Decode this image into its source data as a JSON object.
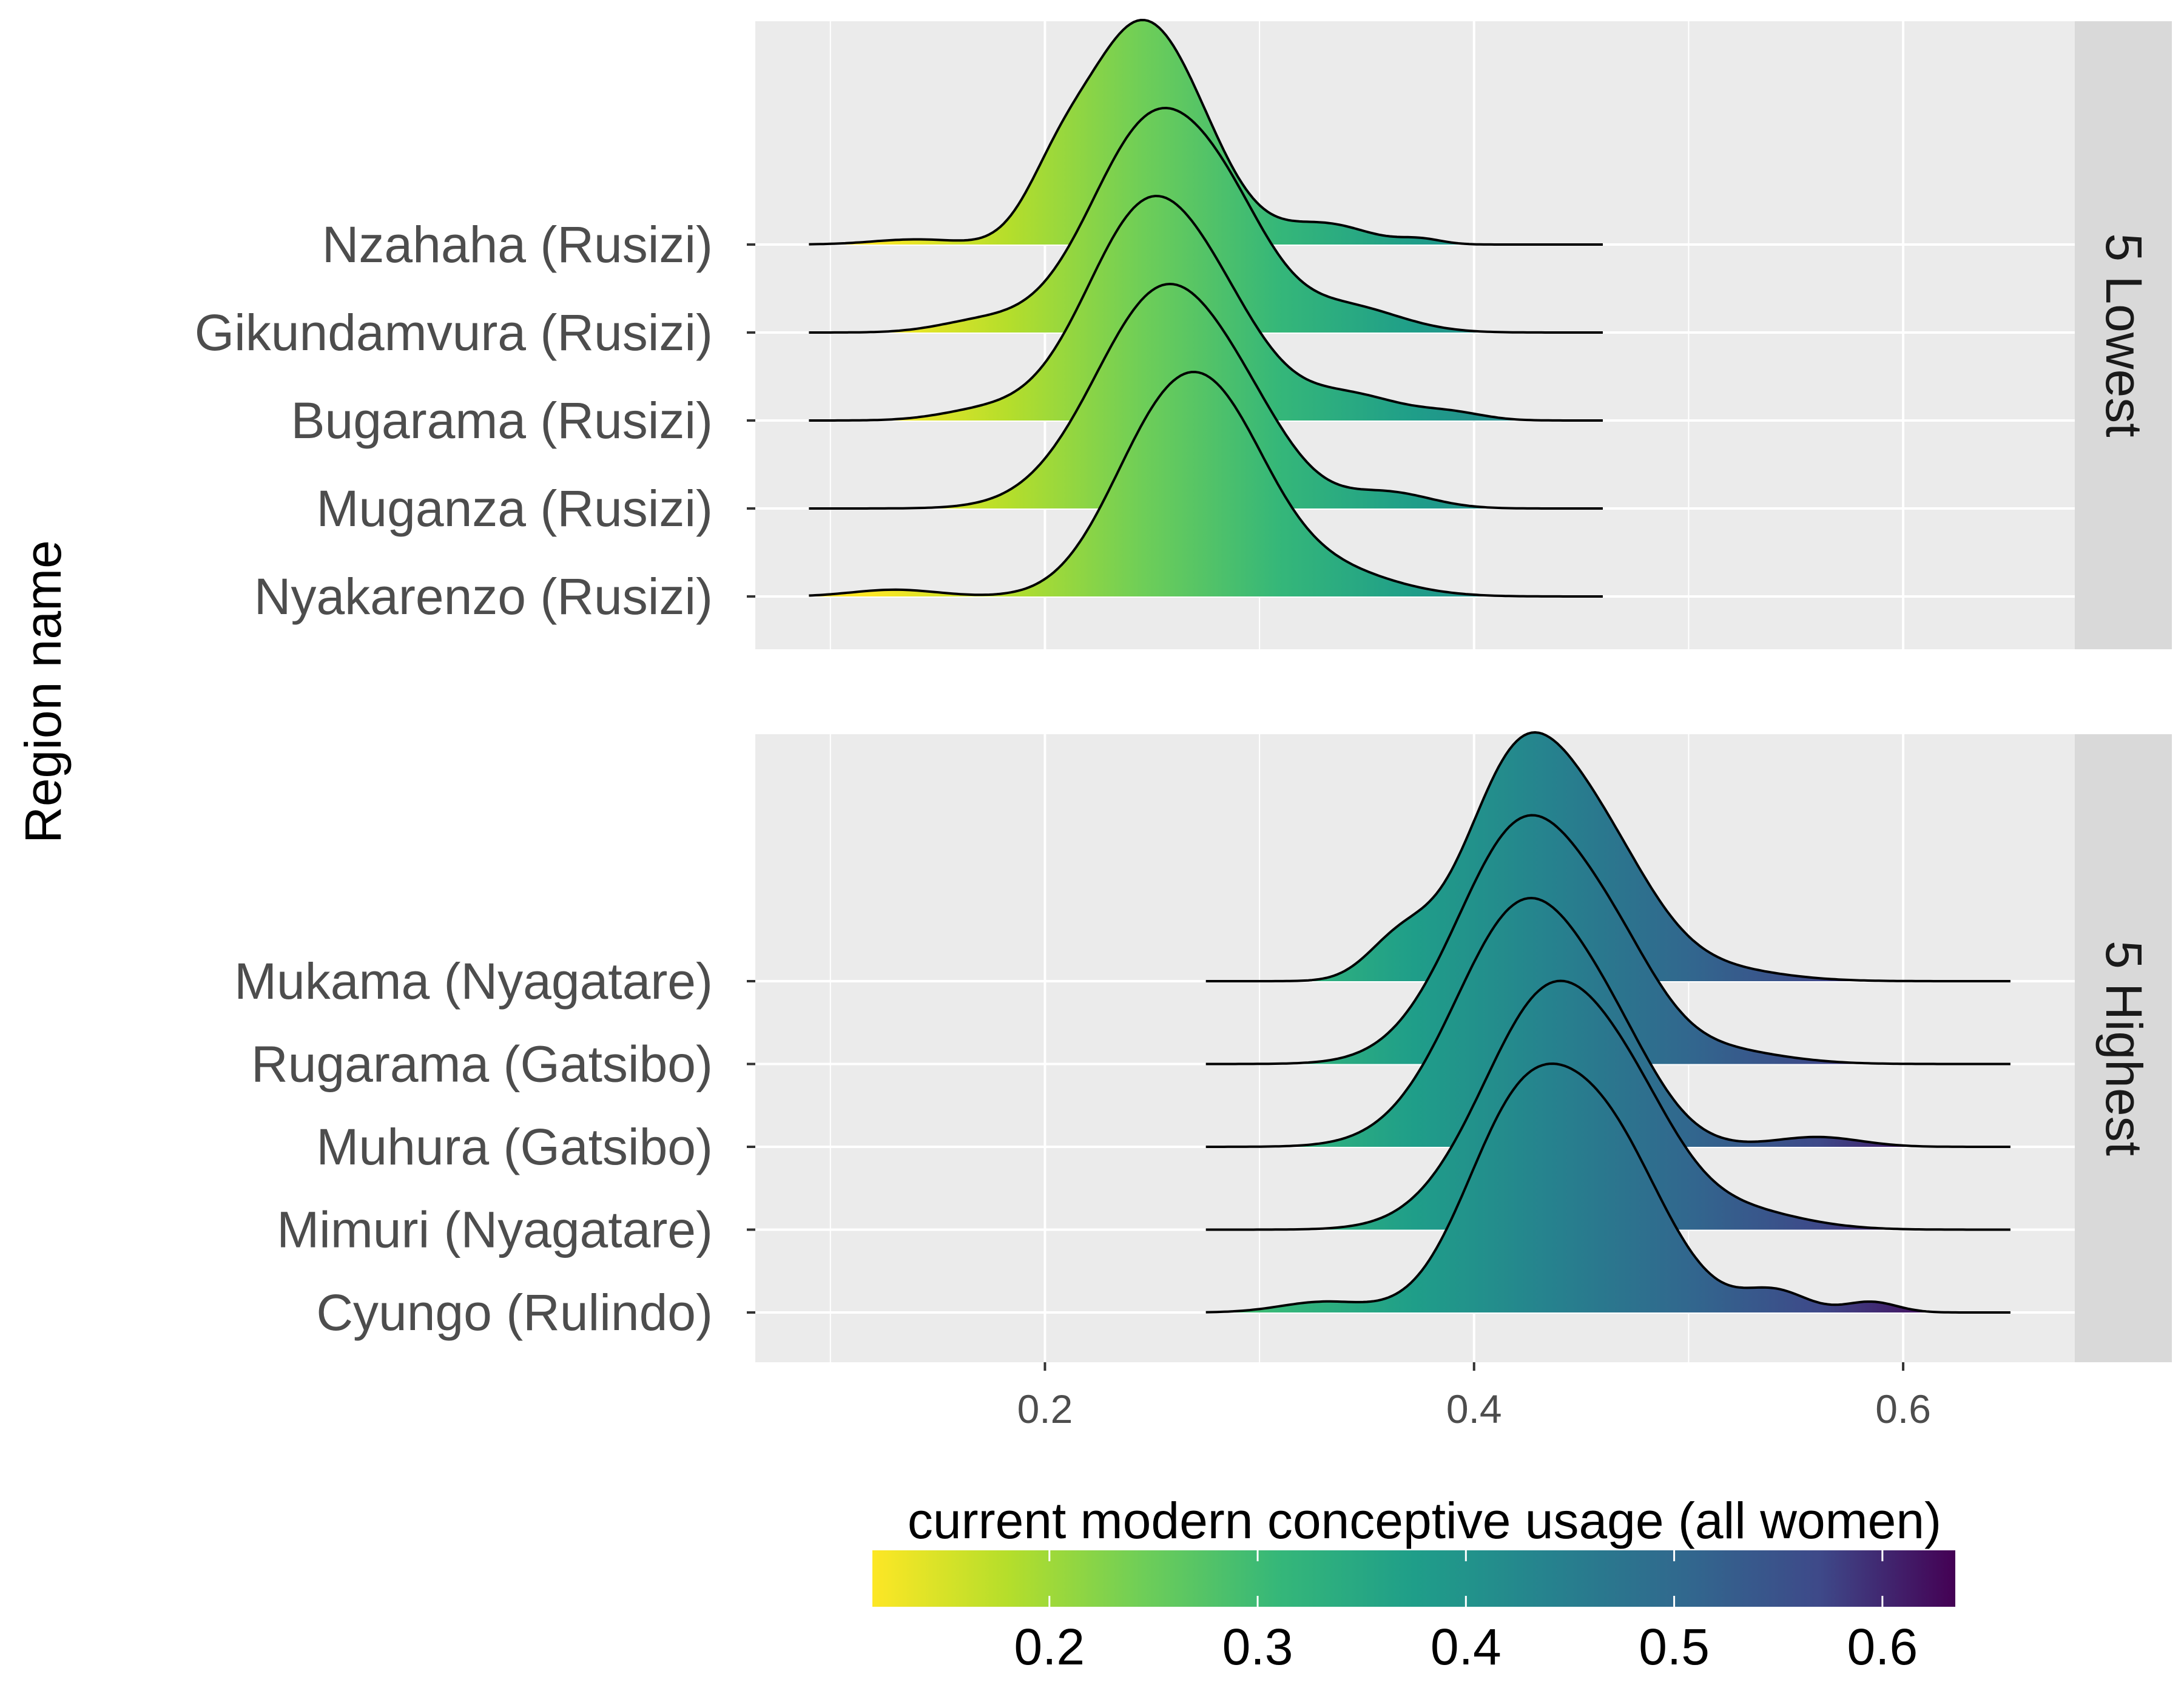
{
  "chart_data": {
    "type": "ridgeline",
    "ylabel": "Region name",
    "xlim": [
      0.065,
      0.68
    ],
    "x_ticks": [
      0.2,
      0.4,
      0.6
    ],
    "x_tick_labels": [
      "0.2",
      "0.4",
      "0.6"
    ],
    "grid": true,
    "legend_placement": "bottom",
    "panels": [
      {
        "strip_label": "5 Lowest",
        "support": [
          0.09,
          0.46
        ],
        "regions": [
          {
            "name": "Nzahaha (Rusizi)",
            "peaks": [
              [
                0.237,
                0.022,
                0.95
              ],
              [
                0.265,
                0.022,
                0.62
              ],
              [
                0.205,
                0.015,
                0.3
              ],
              [
                0.33,
                0.02,
                0.12
              ],
              [
                0.375,
                0.01,
                0.03
              ],
              [
                0.14,
                0.02,
                0.03
              ]
            ]
          },
          {
            "name": "Gikundamvura (Rusizi)",
            "peaks": [
              [
                0.252,
                0.03,
                1.0
              ],
              [
                0.29,
                0.02,
                0.22
              ],
              [
                0.34,
                0.025,
                0.12
              ],
              [
                0.17,
                0.02,
                0.05
              ]
            ]
          },
          {
            "name": "Bugarama (Rusizi)",
            "peaks": [
              [
                0.25,
                0.03,
                1.0
              ],
              [
                0.29,
                0.02,
                0.14
              ],
              [
                0.34,
                0.025,
                0.12
              ],
              [
                0.39,
                0.015,
                0.03
              ],
              [
                0.17,
                0.02,
                0.04
              ]
            ]
          },
          {
            "name": "Muganza (Rusizi)",
            "peaks": [
              [
                0.257,
                0.033,
                1.0
              ],
              [
                0.3,
                0.02,
                0.1
              ],
              [
                0.36,
                0.02,
                0.07
              ]
            ]
          },
          {
            "name": "Nyakarenzo (Rusizi)",
            "peaks": [
              [
                0.25,
                0.025,
                0.55
              ],
              [
                0.282,
                0.025,
                0.65
              ],
              [
                0.33,
                0.03,
                0.12
              ],
              [
                0.13,
                0.02,
                0.03
              ]
            ]
          }
        ]
      },
      {
        "strip_label": "5 Highest",
        "support": [
          0.275,
          0.65
        ],
        "regions": [
          {
            "name": "Mukama (Nyagatare)",
            "peaks": [
              [
                0.42,
                0.025,
                1.0
              ],
              [
                0.46,
                0.025,
                0.55
              ],
              [
                0.365,
                0.015,
                0.18
              ],
              [
                0.51,
                0.03,
                0.06
              ]
            ]
          },
          {
            "name": "Rugarama (Gatsibo)",
            "peaks": [
              [
                0.425,
                0.032,
                1.0
              ],
              [
                0.47,
                0.02,
                0.18
              ],
              [
                0.51,
                0.03,
                0.06
              ]
            ]
          },
          {
            "name": "Muhura (Gatsibo)",
            "peaks": [
              [
                0.425,
                0.033,
                1.0
              ],
              [
                0.47,
                0.02,
                0.14
              ],
              [
                0.56,
                0.02,
                0.04
              ]
            ]
          },
          {
            "name": "Mimuri (Nyagatare)",
            "peaks": [
              [
                0.438,
                0.033,
                1.0
              ],
              [
                0.48,
                0.02,
                0.14
              ],
              [
                0.52,
                0.03,
                0.08
              ]
            ]
          },
          {
            "name": "Cyungo (Rulindo)",
            "peaks": [
              [
                0.418,
                0.025,
                0.62
              ],
              [
                0.46,
                0.028,
                0.66
              ],
              [
                0.54,
                0.015,
                0.08
              ],
              [
                0.585,
                0.012,
                0.04
              ],
              [
                0.33,
                0.02,
                0.04
              ]
            ]
          }
        ]
      }
    ],
    "colorbar": {
      "title": "current modern conceptive usage (all women)",
      "range": [
        0.115,
        0.635
      ],
      "ticks": [
        0.2,
        0.3,
        0.4,
        0.5,
        0.6
      ],
      "tick_labels": [
        "0.2",
        "0.3",
        "0.4",
        "0.5",
        "0.6"
      ],
      "palette": "viridis"
    },
    "colors": {
      "panel_bg": "#ebebeb",
      "strip_bg": "#d9d9d9",
      "grid": "#ffffff",
      "outline": "#000000"
    }
  }
}
